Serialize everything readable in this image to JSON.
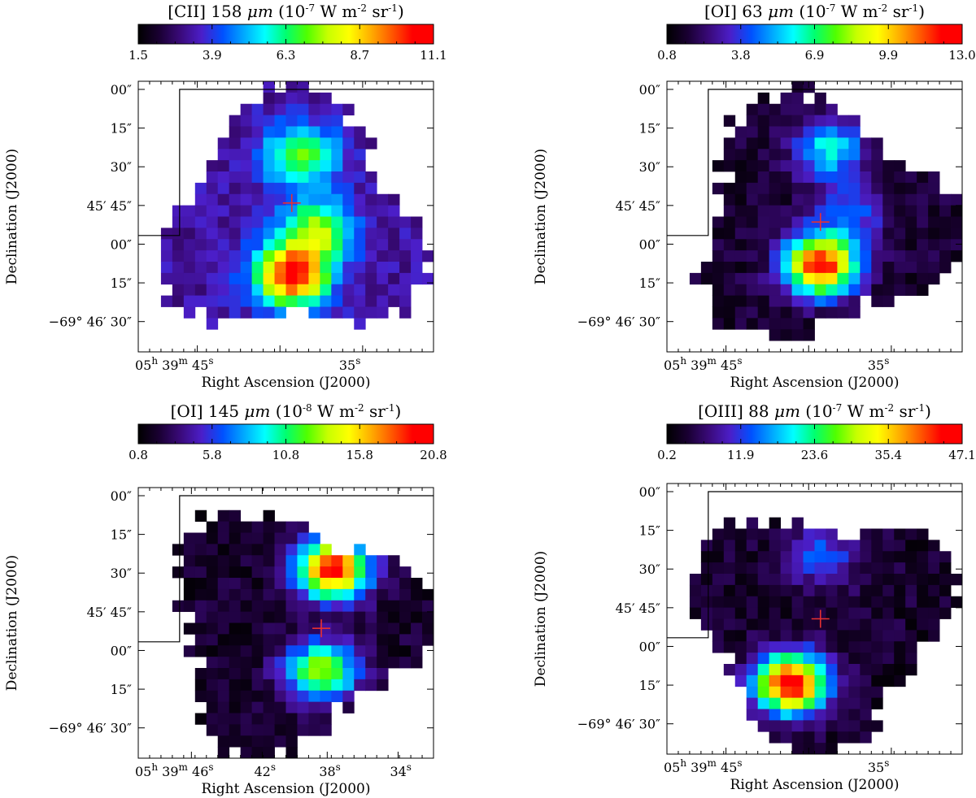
{
  "colormap": [
    "#000000",
    "#1a0033",
    "#3a0a7a",
    "#4b1ec8",
    "#0050ff",
    "#00a8ff",
    "#00ffff",
    "#00ff70",
    "#50ff00",
    "#c8ff00",
    "#ffff00",
    "#ffb000",
    "#ff5a00",
    "#ff0000",
    "#ff0000"
  ],
  "chart_data": [
    {
      "type": "heatmap",
      "title_line": "[CII]",
      "title_wave": "158",
      "title_unit": "μm",
      "title_exp": "-7",
      "colorbar_ticks": [
        "1.5",
        "3.9",
        "6.3",
        "8.7",
        "11.1"
      ],
      "vmin": 1.5,
      "vmax": 11.1,
      "ra_ticks": [
        "05",
        "39",
        "45",
        "35"
      ],
      "dec_ticks": [
        "00″",
        "15″",
        "30″",
        "45′ 45″",
        "00″",
        "15″",
        "−69° 46′ 30″"
      ],
      "xlabel": "Right Ascension (J2000)",
      "ylabel": "Declination (J2000)",
      "peaks": [
        [
          0.52,
          0.72,
          10.8
        ],
        [
          0.55,
          0.28,
          7.2
        ],
        [
          0.6,
          0.55,
          7.5
        ]
      ],
      "base": 3.2,
      "marker": [
        0.52,
        0.45
      ]
    },
    {
      "type": "heatmap",
      "title_line": "[OI]",
      "title_wave": "63",
      "title_unit": "μm",
      "title_exp": "-7",
      "colorbar_ticks": [
        "0.8",
        "3.8",
        "6.9",
        "9.9",
        "13.0"
      ],
      "vmin": 0.8,
      "vmax": 13.0,
      "ra_ticks": [
        "05",
        "39",
        "45",
        "35"
      ],
      "dec_ticks": [
        "00″",
        "15″",
        "30″",
        "45′ 45″",
        "00″",
        "15″",
        "−69° 46′ 30″"
      ],
      "xlabel": "Right Ascension (J2000)",
      "ylabel": "Declination (J2000)",
      "peaks": [
        [
          0.52,
          0.68,
          12.5
        ],
        [
          0.55,
          0.25,
          6.0
        ],
        [
          0.62,
          0.48,
          4.5
        ]
      ],
      "base": 1.6,
      "marker": [
        0.52,
        0.52
      ]
    },
    {
      "type": "heatmap",
      "title_line": "[OI]",
      "title_wave": "145",
      "title_unit": "μm",
      "title_exp": "-8",
      "colorbar_ticks": [
        "0.8",
        "5.8",
        "10.8",
        "15.8",
        "20.8"
      ],
      "vmin": 0.8,
      "vmax": 20.8,
      "ra_ticks": [
        "05",
        "39",
        "46",
        "42",
        "38",
        "34"
      ],
      "dec_ticks": [
        "00″",
        "15″",
        "30″",
        "45′ 45″",
        "00″",
        "15″",
        "−69° 46′ 30″"
      ],
      "xlabel": "Right Ascension (J2000)",
      "ylabel": "Declination (J2000)",
      "peaks": [
        [
          0.66,
          0.3,
          20.0
        ],
        [
          0.62,
          0.68,
          13.5
        ]
      ],
      "base": 2.0,
      "marker": [
        0.62,
        0.52
      ]
    },
    {
      "type": "heatmap",
      "title_line": "[OIII]",
      "title_wave": "88",
      "title_unit": "μm",
      "title_exp": "-7",
      "colorbar_ticks": [
        "0.2",
        "11.9",
        "23.6",
        "35.4",
        "47.1"
      ],
      "vmin": 0.2,
      "vmax": 47.1,
      "ra_ticks": [
        "05",
        "39",
        "45",
        "35"
      ],
      "dec_ticks": [
        "00″",
        "15″",
        "30″",
        "45′ 45″",
        "00″",
        "15″",
        "−69° 46′ 30″"
      ],
      "xlabel": "Right Ascension (J2000)",
      "ylabel": "Declination (J2000)",
      "peaks": [
        [
          0.42,
          0.74,
          46.0
        ],
        [
          0.52,
          0.27,
          14.0
        ]
      ],
      "base": 3.0,
      "marker": [
        0.52,
        0.5
      ]
    }
  ]
}
